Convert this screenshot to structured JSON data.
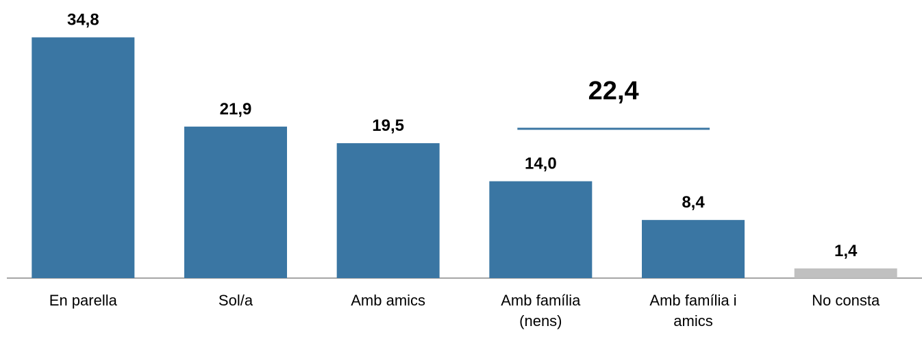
{
  "chart_data": {
    "type": "bar",
    "categories": [
      "En parella",
      "Sol/a",
      "Amb amics",
      "Amb família (nens)",
      "Amb família i amics",
      "No consta"
    ],
    "values": [
      34.8,
      21.9,
      19.5,
      14.0,
      8.4,
      1.4
    ],
    "value_labels": [
      "34,8",
      "21,9",
      "19,5",
      "14,0",
      "8,4",
      "1,4"
    ],
    "colors": [
      "#3a76a3",
      "#3a76a3",
      "#3a76a3",
      "#3a76a3",
      "#3a76a3",
      "#c0c0c0"
    ],
    "ylim": [
      0,
      40
    ],
    "annotation": "22,4"
  }
}
